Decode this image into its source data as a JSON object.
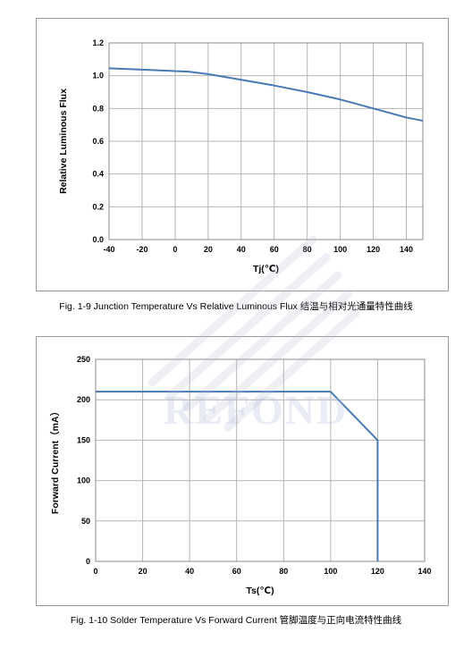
{
  "watermark": {
    "text": "REFOND"
  },
  "chart_data": [
    {
      "type": "line",
      "caption": "Fig. 1-9 Junction Temperature Vs Relative Luminous Flux 结温与相对光通量特性曲线",
      "xlabel": "Tj(℃)",
      "ylabel": "Relative Luminous Flux",
      "xlim": [
        -40,
        150
      ],
      "ylim": [
        0.0,
        1.2
      ],
      "xticks": [
        -40,
        -20,
        0,
        20,
        40,
        60,
        80,
        100,
        120,
        140
      ],
      "yticks": [
        "0.0",
        "0.2",
        "0.4",
        "0.6",
        "0.8",
        "1.0",
        "1.2"
      ],
      "grid": true,
      "line_color": "#4a7ab5",
      "series": [
        {
          "x": [
            -40,
            -20,
            0,
            8,
            20,
            40,
            60,
            80,
            100,
            120,
            140,
            150
          ],
          "y": [
            1.045,
            1.037,
            1.028,
            1.025,
            1.01,
            0.975,
            0.94,
            0.9,
            0.855,
            0.8,
            0.745,
            0.725
          ]
        }
      ]
    },
    {
      "type": "line",
      "caption": "Fig. 1-10 Solder Temperature Vs Forward Current  管脚温度与正向电流特性曲线",
      "xlabel": "Ts(℃)",
      "ylabel": "Forward Current（mA）",
      "xlim": [
        0,
        140
      ],
      "ylim": [
        0,
        250
      ],
      "xticks": [
        0,
        20,
        40,
        60,
        80,
        100,
        120,
        140
      ],
      "yticks": [
        "0",
        "50",
        "100",
        "150",
        "200",
        "250"
      ],
      "grid": true,
      "line_color": "#4a7ab5",
      "series": [
        {
          "x": [
            0,
            100,
            120,
            120
          ],
          "y": [
            210,
            210,
            150,
            0
          ]
        }
      ]
    }
  ]
}
